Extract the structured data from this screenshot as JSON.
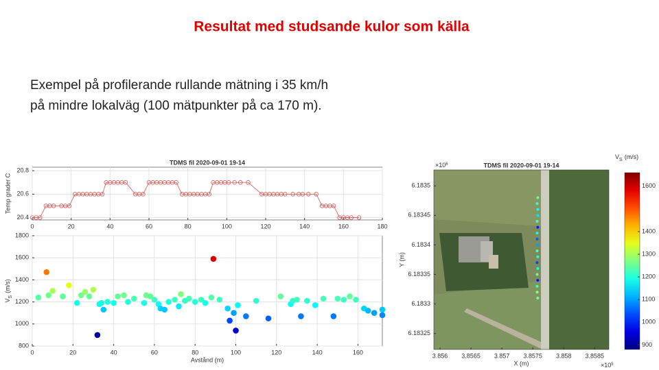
{
  "title": "Resultat med studsande kulor som källa",
  "text": [
    "Exempel på profilerande rullande mätning i 35 km/h",
    "på mindre lokalväg (100 mätpunkter på ca 170 m)."
  ],
  "chart_data": [
    {
      "type": "line",
      "title": "TDMS fil 2020-09-01 19-14",
      "ylabel": "Temp grader C",
      "grid": true,
      "x": [
        0,
        2,
        4,
        7,
        9,
        11,
        15,
        17,
        19,
        22,
        24,
        26,
        28,
        30,
        32,
        34,
        36,
        38,
        40,
        42,
        44,
        46,
        48,
        53,
        55,
        57,
        60,
        62,
        64,
        66,
        68,
        70,
        72,
        74,
        77,
        79,
        81,
        83,
        85,
        87,
        89,
        91,
        93,
        95,
        97,
        99,
        101,
        104,
        107,
        111,
        118,
        120,
        122,
        124,
        126,
        128,
        130,
        134,
        137,
        139,
        142,
        146,
        149,
        151,
        153,
        155,
        158,
        160,
        162,
        164,
        168
      ],
      "series": [
        {
          "color": "#d9534f",
          "values": [
            20.4,
            20.4,
            20.4,
            20.5,
            20.5,
            20.5,
            20.5,
            20.5,
            20.5,
            20.6,
            20.6,
            20.6,
            20.6,
            20.6,
            20.6,
            20.6,
            20.6,
            20.7,
            20.7,
            20.7,
            20.7,
            20.7,
            20.7,
            20.6,
            20.6,
            20.6,
            20.7,
            20.7,
            20.7,
            20.7,
            20.7,
            20.7,
            20.7,
            20.7,
            20.6,
            20.6,
            20.6,
            20.6,
            20.6,
            20.6,
            20.6,
            20.6,
            20.7,
            20.7,
            20.7,
            20.7,
            20.7,
            20.7,
            20.7,
            20.7,
            20.6,
            20.6,
            20.6,
            20.6,
            20.6,
            20.6,
            20.6,
            20.6,
            20.6,
            20.6,
            20.6,
            20.6,
            20.5,
            20.5,
            20.5,
            20.5,
            20.4,
            20.4,
            20.4,
            20.4,
            20.4
          ]
        }
      ],
      "xlim": [
        0,
        180
      ],
      "xticks": [
        0,
        20,
        40,
        60,
        80,
        100,
        120,
        140,
        160,
        180
      ],
      "ylim": [
        20.38,
        20.83
      ],
      "yticks": [
        20.4,
        20.6,
        20.8
      ]
    },
    {
      "type": "scatter",
      "xlabel": "Avstånd (m)",
      "ylabel": {
        "main": "V",
        "sub": "S",
        "unit": "(m/s)"
      },
      "grid": true,
      "colormap": "jet",
      "clim": [
        880,
        1660
      ],
      "x": [
        3,
        7,
        8,
        10,
        15,
        18,
        22,
        24,
        26,
        28,
        30,
        32,
        33,
        34,
        35,
        37,
        40,
        42,
        45,
        47,
        50,
        55,
        56,
        58,
        60,
        62,
        63,
        65,
        67,
        70,
        72,
        73,
        75,
        77,
        80,
        83,
        85,
        88,
        89,
        92,
        96,
        97,
        99,
        100,
        101,
        105,
        110,
        116,
        122,
        127,
        128,
        130,
        132,
        135,
        139,
        143,
        148,
        150,
        153,
        156,
        159,
        163,
        165,
        168,
        172,
        172
      ],
      "y": [
        1240,
        1470,
        1260,
        1300,
        1250,
        1350,
        1190,
        1260,
        1290,
        1250,
        1310,
        900,
        1180,
        1190,
        1130,
        1200,
        1190,
        1250,
        1260,
        1200,
        1230,
        1190,
        1260,
        1250,
        1220,
        1180,
        1140,
        1130,
        1200,
        1220,
        1160,
        1270,
        1210,
        1230,
        1200,
        1220,
        1190,
        1240,
        1590,
        1220,
        1140,
        1030,
        1100,
        940,
        1170,
        1070,
        1210,
        1050,
        1250,
        1180,
        1210,
        1220,
        1070,
        1210,
        1170,
        1230,
        1070,
        1230,
        1220,
        1250,
        1220,
        1140,
        1120,
        1100,
        1080,
        1130
      ],
      "xlim": [
        0,
        172
      ],
      "xticks": [
        0,
        20,
        40,
        60,
        80,
        100,
        120,
        140,
        160
      ],
      "ylim": [
        800,
        1800
      ],
      "yticks": [
        800,
        1000,
        1200,
        1400,
        1600,
        1800
      ]
    },
    {
      "type": "scatter",
      "title": "TDMS fil 2020-09-01 19-14",
      "xlabel": "X (m)",
      "ylabel": "Y (m)",
      "colormap": "jet",
      "xexponent": {
        "base": "×10",
        "exp": "5"
      },
      "yexponent": {
        "base": "×10",
        "exp": "6"
      },
      "x": [
        3.85758,
        3.85757,
        3.85758,
        3.85758,
        3.85757,
        3.85758,
        3.85757,
        3.85757,
        3.85758,
        3.85757,
        3.85758,
        3.85757,
        3.85758,
        3.85757,
        3.85758,
        3.85757,
        3.85757,
        3.85758
      ],
      "y": [
        6.18348,
        6.18347,
        6.18346,
        6.18345,
        6.18344,
        6.18343,
        6.18342,
        6.18341,
        6.1834,
        6.18339,
        6.18338,
        6.18337,
        6.18336,
        6.18335,
        6.18334,
        6.18333,
        6.18332,
        6.18331
      ],
      "values": [
        1250,
        1200,
        1180,
        1150,
        1220,
        1000,
        1180,
        1050,
        1100,
        1230,
        1200,
        1030,
        1180,
        1250,
        1000,
        1220,
        1280,
        1260
      ],
      "xlim": [
        3.8559,
        3.85873
      ],
      "xticks": [
        3.856,
        3.8565,
        3.857,
        3.8575,
        3.858,
        3.8585
      ],
      "ylim": [
        6.183223,
        6.183527
      ],
      "yticks": [
        6.18325,
        6.1833,
        6.18335,
        6.1834,
        6.18345,
        6.1835
      ],
      "colorbar": {
        "title": {
          "main": "V",
          "sub": "S",
          "unit": "(m/s)"
        },
        "lim": [
          880,
          1660
        ],
        "ticks": [
          900,
          1000,
          1100,
          1200,
          1300,
          1400,
          1600
        ]
      }
    }
  ]
}
